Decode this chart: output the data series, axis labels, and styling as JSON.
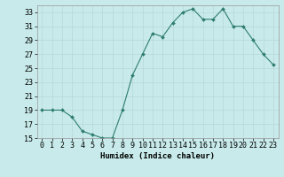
{
  "x": [
    0,
    1,
    2,
    3,
    4,
    5,
    6,
    7,
    8,
    9,
    10,
    11,
    12,
    13,
    14,
    15,
    16,
    17,
    18,
    19,
    20,
    21,
    22,
    23
  ],
  "y": [
    19,
    19,
    19,
    18,
    16,
    15.5,
    15,
    15,
    19,
    24,
    27,
    30,
    29.5,
    31.5,
    33,
    33.5,
    32,
    32,
    33.5,
    31,
    31,
    29,
    27,
    25.5
  ],
  "line_color": "#2e7d6e",
  "marker_color": "#2e7d6e",
  "bg_color": "#c8eaea",
  "grid_color": "#b8d8d8",
  "xlabel": "Humidex (Indice chaleur)",
  "ylim": [
    15,
    34
  ],
  "yticks": [
    15,
    17,
    19,
    21,
    23,
    25,
    27,
    29,
    31,
    33
  ],
  "xticks": [
    0,
    1,
    2,
    3,
    4,
    5,
    6,
    7,
    8,
    9,
    10,
    11,
    12,
    13,
    14,
    15,
    16,
    17,
    18,
    19,
    20,
    21,
    22,
    23
  ],
  "xtick_labels": [
    "0",
    "1",
    "2",
    "3",
    "4",
    "5",
    "6",
    "7",
    "8",
    "9",
    "10",
    "11",
    "12",
    "13",
    "14",
    "15",
    "16",
    "17",
    "18",
    "19",
    "20",
    "21",
    "22",
    "23"
  ],
  "axis_fontsize": 6.5,
  "tick_fontsize": 6.0
}
